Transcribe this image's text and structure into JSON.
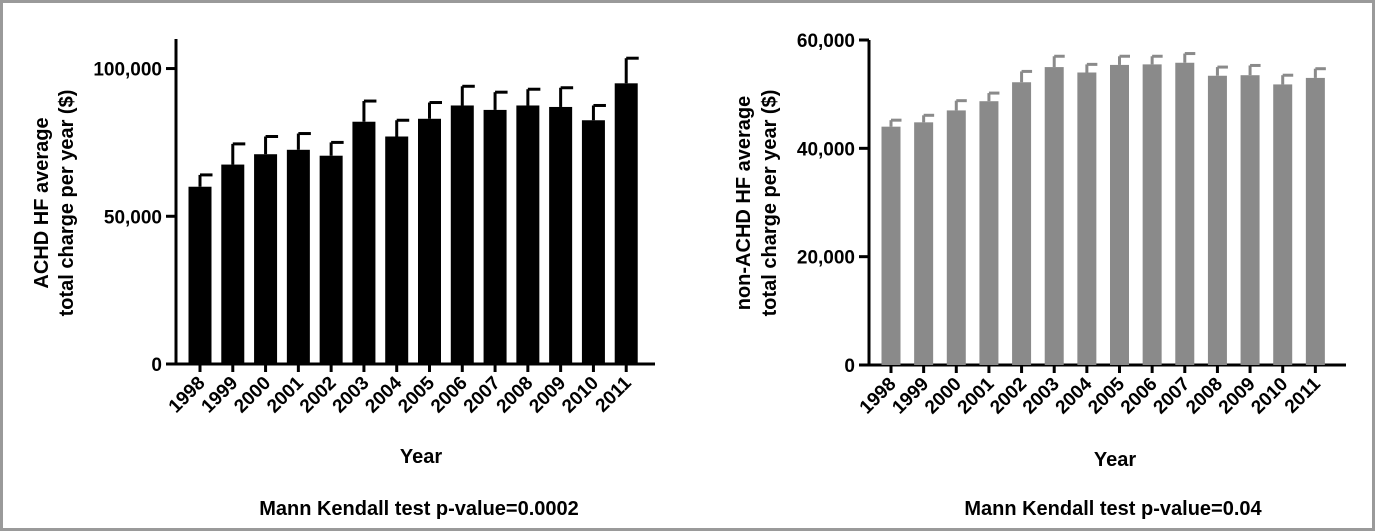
{
  "chart_data": [
    {
      "type": "bar",
      "categories": [
        "1998",
        "1999",
        "2000",
        "2001",
        "2002",
        "2003",
        "2004",
        "2005",
        "2006",
        "2007",
        "2008",
        "2009",
        "2010",
        "2011"
      ],
      "values": [
        60000,
        67500,
        71000,
        72500,
        70500,
        82000,
        77000,
        83000,
        87500,
        86000,
        87500,
        87000,
        82500,
        95000
      ],
      "errors": [
        4000,
        7000,
        6000,
        5500,
        4500,
        7000,
        5500,
        5500,
        6500,
        6000,
        5500,
        6500,
        5000,
        8500
      ],
      "ylim": [
        0,
        110000
      ],
      "yticks": [
        0,
        50000,
        100000
      ],
      "ytick_labels": [
        "0",
        "50,000",
        "100,000"
      ],
      "xlabel": "Year",
      "ylabel": [
        "ACHD HF average",
        "total charge per year ($)"
      ],
      "caption": "Mann Kendall test p-value=0.0002",
      "bar_color": "#000000",
      "grid": false
    },
    {
      "type": "bar",
      "categories": [
        "1998",
        "1999",
        "2000",
        "2001",
        "2002",
        "2003",
        "2004",
        "2005",
        "2006",
        "2007",
        "2008",
        "2009",
        "2010",
        "2011"
      ],
      "values": [
        44000,
        44800,
        47000,
        48700,
        52200,
        55000,
        54000,
        55400,
        55500,
        55800,
        53400,
        53500,
        51800,
        53000
      ],
      "errors": [
        1200,
        1300,
        1800,
        1500,
        2000,
        2000,
        1500,
        1600,
        1500,
        1700,
        1600,
        1800,
        1700,
        1700
      ],
      "ylim": [
        0,
        60000
      ],
      "yticks": [
        0,
        20000,
        40000,
        60000
      ],
      "ytick_labels": [
        "0",
        "20,000",
        "40,000",
        "60,000"
      ],
      "xlabel": "Year",
      "ylabel": [
        "non-ACHD HF average",
        "total charge per year ($)"
      ],
      "caption": "Mann Kendall test p-value=0.04",
      "bar_color": "#8a8a8a",
      "grid": false
    }
  ]
}
